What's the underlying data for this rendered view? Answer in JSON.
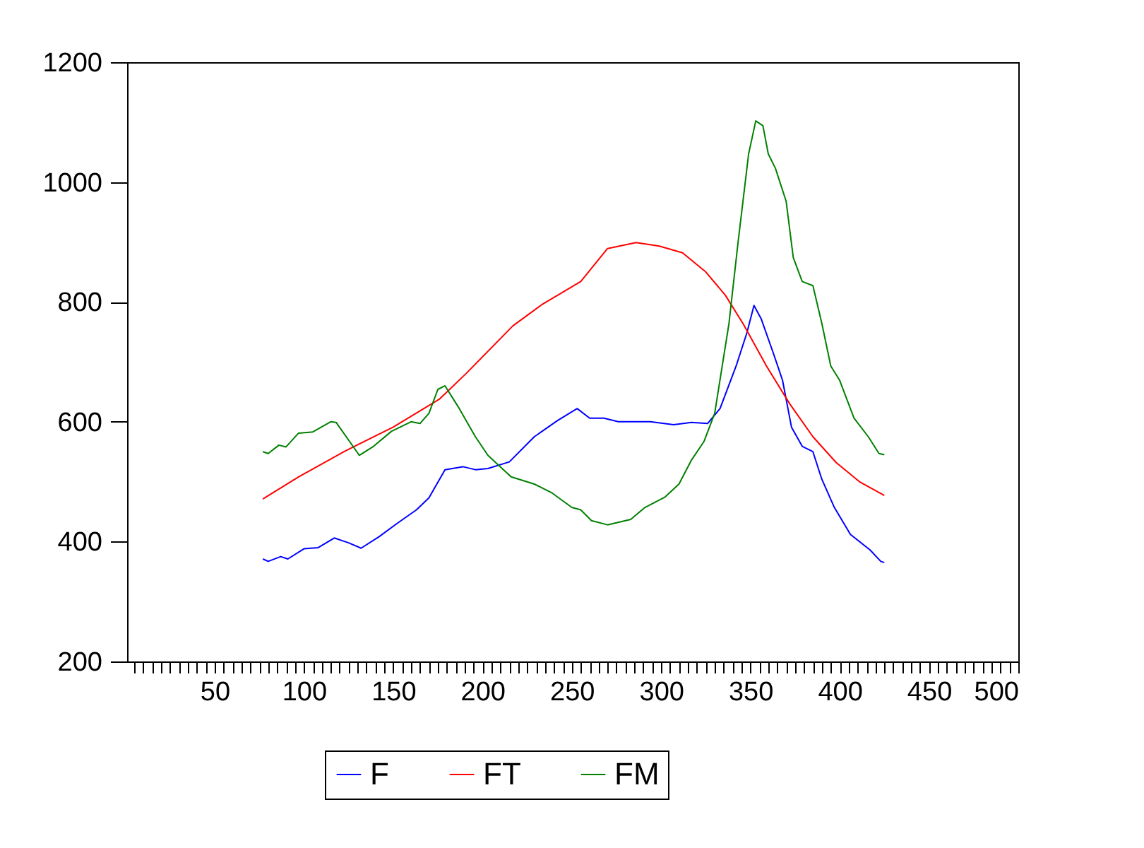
{
  "chart_data": {
    "type": "line",
    "xlim": [
      1,
      500
    ],
    "ylim": [
      200,
      1200
    ],
    "xticks": [
      {
        "value": 5,
        "label": null
      },
      {
        "value": 10,
        "label": null
      },
      {
        "value": 15,
        "label": null
      },
      {
        "value": 20,
        "label": null
      },
      {
        "value": 25,
        "label": null
      },
      {
        "value": 30,
        "label": null
      },
      {
        "value": 35,
        "label": null
      },
      {
        "value": 40,
        "label": null
      },
      {
        "value": 45,
        "label": null
      },
      50,
      {
        "value": 55,
        "label": null
      },
      {
        "value": 60,
        "label": null
      },
      {
        "value": 65,
        "label": null
      },
      {
        "value": 70,
        "label": null
      },
      {
        "value": 75,
        "label": null
      },
      {
        "value": 80,
        "label": null
      },
      {
        "value": 85,
        "label": null
      },
      {
        "value": 90,
        "label": null
      },
      {
        "value": 95,
        "label": null
      },
      100,
      {
        "value": 105,
        "label": null
      },
      {
        "value": 110,
        "label": null
      },
      {
        "value": 115,
        "label": null
      },
      {
        "value": 120,
        "label": null
      },
      {
        "value": 125,
        "label": null
      },
      {
        "value": 130,
        "label": null
      },
      {
        "value": 135,
        "label": null
      },
      {
        "value": 140,
        "label": null
      },
      {
        "value": 145,
        "label": null
      },
      150,
      {
        "value": 155,
        "label": null
      },
      {
        "value": 160,
        "label": null
      },
      {
        "value": 165,
        "label": null
      },
      {
        "value": 170,
        "label": null
      },
      {
        "value": 175,
        "label": null
      },
      {
        "value": 180,
        "label": null
      },
      {
        "value": 185,
        "label": null
      },
      {
        "value": 190,
        "label": null
      },
      {
        "value": 195,
        "label": null
      },
      200,
      {
        "value": 205,
        "label": null
      },
      {
        "value": 210,
        "label": null
      },
      {
        "value": 215,
        "label": null
      },
      {
        "value": 220,
        "label": null
      },
      {
        "value": 225,
        "label": null
      },
      {
        "value": 230,
        "label": null
      },
      {
        "value": 235,
        "label": null
      },
      {
        "value": 240,
        "label": null
      },
      {
        "value": 245,
        "label": null
      },
      250,
      {
        "value": 255,
        "label": null
      },
      {
        "value": 260,
        "label": null
      },
      {
        "value": 265,
        "label": null
      },
      {
        "value": 270,
        "label": null
      },
      {
        "value": 275,
        "label": null
      },
      {
        "value": 280,
        "label": null
      },
      {
        "value": 285,
        "label": null
      },
      {
        "value": 290,
        "label": null
      },
      {
        "value": 295,
        "label": null
      },
      300,
      {
        "value": 305,
        "label": null
      },
      {
        "value": 310,
        "label": null
      },
      {
        "value": 315,
        "label": null
      },
      {
        "value": 320,
        "label": null
      },
      {
        "value": 325,
        "label": null
      },
      {
        "value": 330,
        "label": null
      },
      {
        "value": 335,
        "label": null
      },
      {
        "value": 340,
        "label": null
      },
      {
        "value": 345,
        "label": null
      },
      350,
      {
        "value": 355,
        "label": null
      },
      {
        "value": 360,
        "label": null
      },
      {
        "value": 365,
        "label": null
      },
      {
        "value": 370,
        "label": null
      },
      {
        "value": 375,
        "label": null
      },
      {
        "value": 380,
        "label": null
      },
      {
        "value": 385,
        "label": null
      },
      {
        "value": 390,
        "label": null
      },
      {
        "value": 395,
        "label": null
      },
      400,
      {
        "value": 405,
        "label": null
      },
      {
        "value": 410,
        "label": null
      },
      {
        "value": 415,
        "label": null
      },
      {
        "value": 420,
        "label": null
      },
      {
        "value": 425,
        "label": null
      },
      {
        "value": 430,
        "label": null
      },
      {
        "value": 435,
        "label": null
      },
      {
        "value": 440,
        "label": null
      },
      {
        "value": 445,
        "label": null
      },
      450,
      {
        "value": 455,
        "label": null
      },
      {
        "value": 460,
        "label": null
      },
      {
        "value": 465,
        "label": null
      },
      {
        "value": 470,
        "label": null
      },
      {
        "value": 475,
        "label": null
      },
      {
        "value": 480,
        "label": null
      },
      {
        "value": 485,
        "label": null
      },
      {
        "value": 490,
        "label": null
      },
      {
        "value": 495,
        "label": null
      },
      500
    ],
    "yticks": [
      200,
      400,
      600,
      800,
      1000,
      1200
    ],
    "grid": false,
    "legend": "bottom",
    "marker": "none",
    "line_style": "solid",
    "series": [
      {
        "name": "F",
        "color": "#0000ff",
        "x": [
          77,
          80,
          87,
          91,
          100,
          108,
          117,
          125,
          132,
          142,
          152,
          163,
          170,
          179,
          189,
          196,
          203,
          215,
          229,
          242,
          253,
          260,
          268,
          276,
          294,
          307,
          317,
          326,
          333,
          342,
          348,
          352,
          356,
          363,
          368,
          373,
          379,
          385,
          390,
          397,
          406,
          417,
          423,
          425
        ],
        "values": [
          371,
          367,
          375,
          371,
          388,
          390,
          406,
          398,
          389,
          408,
          430,
          453,
          473,
          520,
          525,
          520,
          522,
          533,
          575,
          602,
          622,
          606,
          606,
          600,
          600,
          595,
          599,
          597,
          622,
          693,
          748,
          794,
          772,
          713,
          669,
          591,
          559,
          550,
          504,
          457,
          412,
          386,
          367,
          365
        ]
      },
      {
        "name": "FT",
        "color": "#ff0000",
        "x": [
          77,
          97,
          123,
          150,
          176,
          191,
          217,
          233,
          255,
          270,
          286,
          299,
          312,
          325,
          336,
          346,
          359,
          372,
          385,
          398,
          411,
          425
        ],
        "values": [
          471,
          508,
          551,
          591,
          638,
          681,
          760,
          795,
          834,
          889,
          899,
          893,
          882,
          850,
          811,
          763,
          693,
          630,
          575,
          532,
          500,
          477
        ]
      },
      {
        "name": "FM",
        "color": "#008000",
        "x": [
          77,
          80,
          86,
          90,
          97,
          105,
          115,
          118,
          131,
          139,
          149,
          160,
          165,
          170,
          175,
          179,
          187,
          196,
          203,
          216,
          229,
          239,
          250,
          255,
          261,
          270,
          283,
          291,
          302,
          310,
          317,
          324,
          330,
          338,
          343,
          349,
          353,
          357,
          360,
          364,
          370,
          374,
          379,
          385,
          390,
          395,
          400,
          408,
          416,
          422,
          425
        ],
        "values": [
          550,
          547,
          561,
          558,
          581,
          583,
          600,
          599,
          544,
          559,
          584,
          600,
          597,
          614,
          654,
          660,
          622,
          575,
          544,
          508,
          496,
          481,
          457,
          453,
          435,
          428,
          437,
          457,
          474,
          496,
          536,
          567,
          614,
          764,
          897,
          1047,
          1102,
          1094,
          1047,
          1023,
          968,
          874,
          834,
          827,
          764,
          693,
          669,
          606,
          575,
          547,
          545
        ]
      }
    ]
  }
}
